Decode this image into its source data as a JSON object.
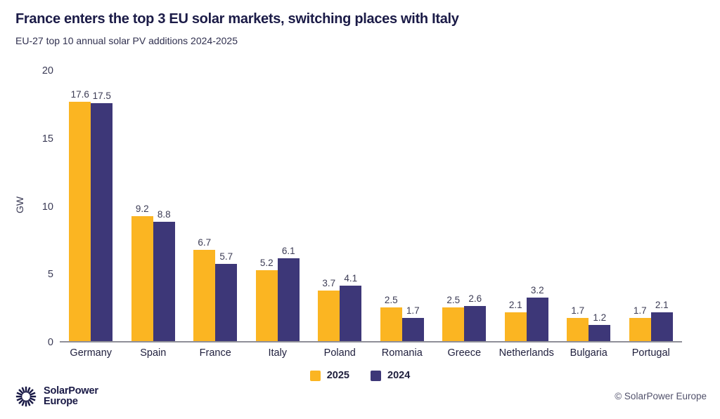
{
  "header": {
    "title": "France enters the top 3 EU solar markets, switching places with Italy",
    "subtitle": "EU-27 top 10 annual solar PV additions 2024-2025"
  },
  "chart_data": {
    "type": "bar",
    "categories": [
      "Germany",
      "Spain",
      "France",
      "Italy",
      "Poland",
      "Romania",
      "Greece",
      "Netherlands",
      "Bulgaria",
      "Portugal"
    ],
    "series": [
      {
        "name": "2025",
        "color": "#fbb522",
        "values": [
          17.6,
          9.2,
          6.7,
          5.2,
          3.7,
          2.5,
          2.5,
          2.1,
          1.7,
          1.7
        ]
      },
      {
        "name": "2024",
        "color": "#3d3778",
        "values": [
          17.5,
          8.8,
          5.7,
          6.1,
          4.1,
          1.7,
          2.6,
          3.2,
          1.2,
          2.1
        ]
      }
    ],
    "title": "France enters the top 3 EU solar markets, switching places with Italy",
    "xlabel": "",
    "ylabel": "GW",
    "ylim": [
      0,
      20
    ],
    "yticks": [
      0,
      5,
      10,
      15,
      20
    ],
    "grid": false,
    "legend_position": "bottom",
    "value_labels": true
  },
  "footer": {
    "logo_line1": "SolarPower",
    "logo_line2": "Europe",
    "copyright": "© SolarPower Europe"
  },
  "colors": {
    "accent_yellow": "#fbb522",
    "accent_purple": "#3d3778",
    "title_navy": "#1b1b47",
    "axis_gray": "#8f8f98"
  }
}
